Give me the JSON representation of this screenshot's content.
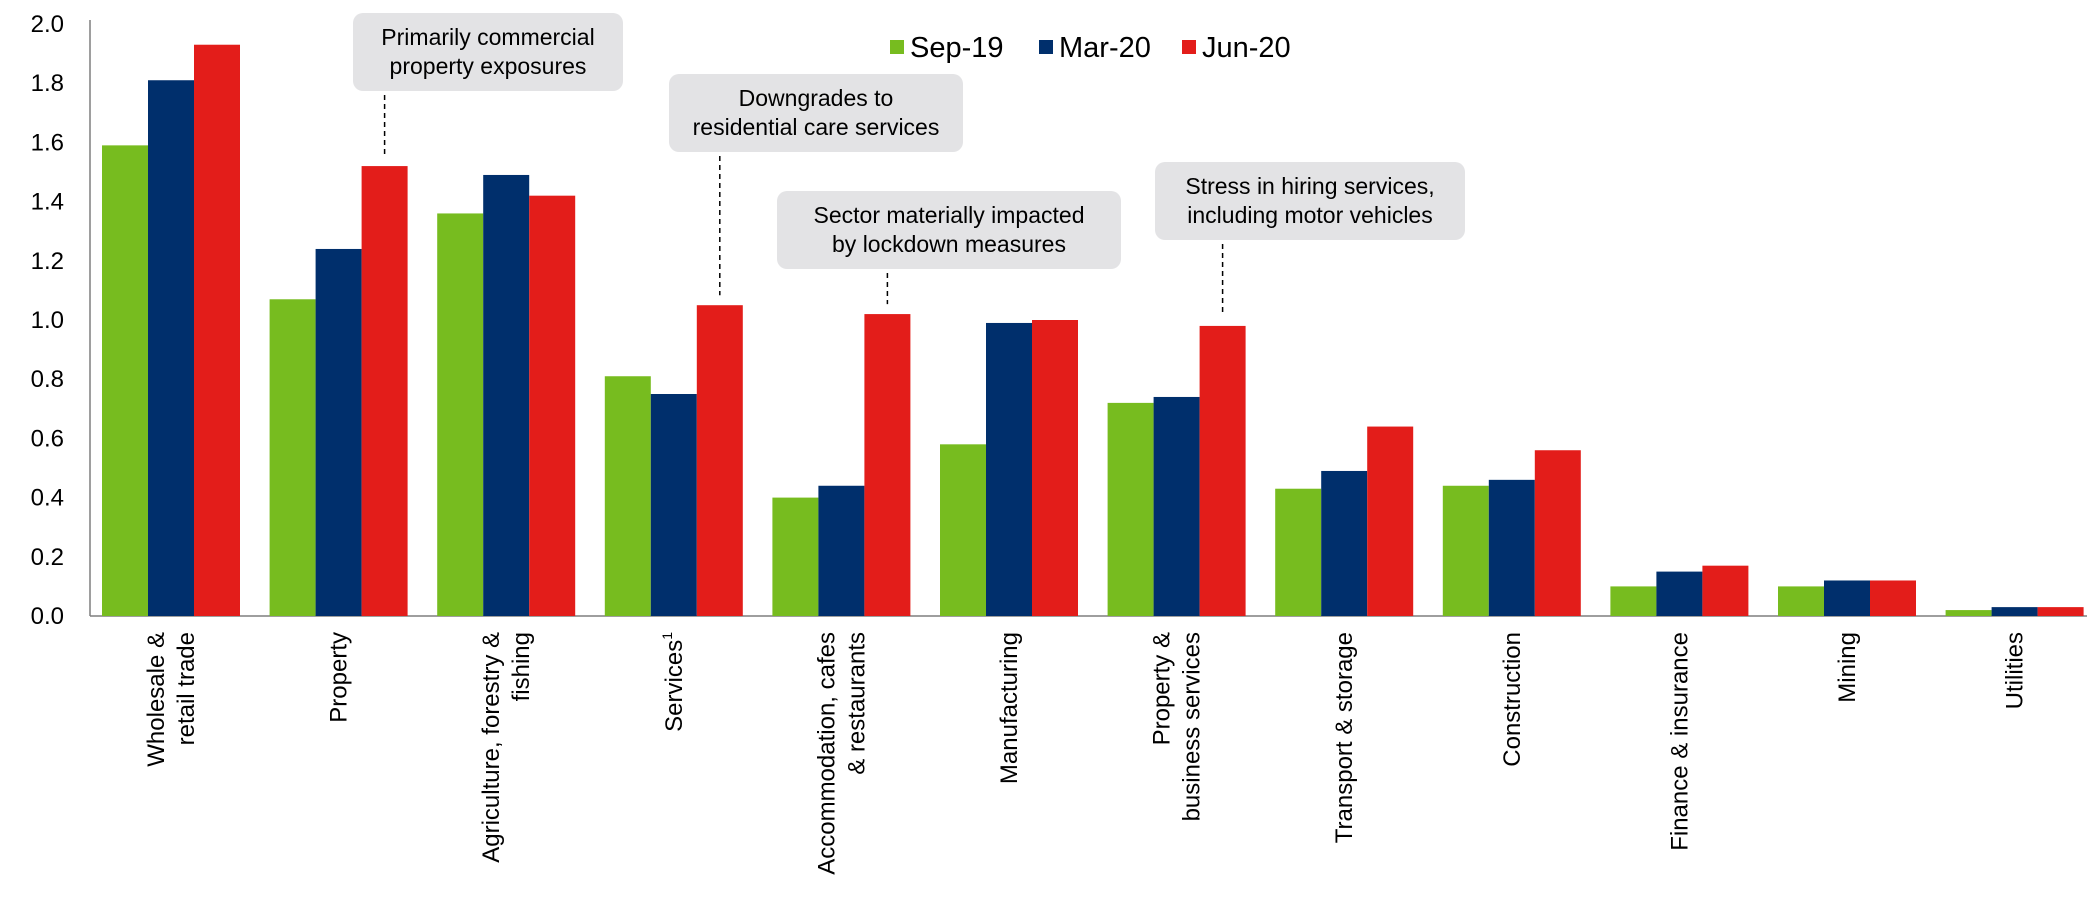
{
  "chart_data": {
    "type": "bar",
    "categories": [
      [
        "Wholesale &",
        "retail trade"
      ],
      [
        "Property"
      ],
      [
        "Agriculture, forestry &",
        "fishing"
      ],
      [
        "Services"
      ],
      [
        "Accommodation, cafes",
        "& restaurants"
      ],
      [
        "Manufacturing"
      ],
      [
        "Property &",
        "business services"
      ],
      [
        "Transport & storage"
      ],
      [
        "Construction"
      ],
      [
        "Finance & insurance"
      ],
      [
        "Mining"
      ],
      [
        "Utilities"
      ]
    ],
    "footnote_marks": [
      "",
      "",
      "",
      "1",
      "",
      "",
      "",
      "",
      "",
      "",
      "",
      ""
    ],
    "series": [
      {
        "name": "Sep-19",
        "color": "#77BC1F",
        "values": [
          1.59,
          1.07,
          1.36,
          0.81,
          0.4,
          0.58,
          0.72,
          0.43,
          0.44,
          0.1,
          0.1,
          0.02
        ]
      },
      {
        "name": "Mar-20",
        "color": "#002F6C",
        "values": [
          1.81,
          1.24,
          1.49,
          0.75,
          0.44,
          0.99,
          0.74,
          0.49,
          0.46,
          0.15,
          0.12,
          0.03
        ]
      },
      {
        "name": "Jun-20",
        "color": "#E31D1A",
        "values": [
          1.93,
          1.52,
          1.42,
          1.05,
          1.02,
          1.0,
          0.98,
          0.64,
          0.56,
          0.17,
          0.12,
          0.03
        ]
      }
    ],
    "y_ticks": [
      "0.0",
      "0.2",
      "0.4",
      "0.6",
      "0.8",
      "1.0",
      "1.2",
      "1.4",
      "1.6",
      "1.8",
      "2.0"
    ],
    "ylim": [
      0,
      2.0
    ],
    "title": "",
    "xlabel": "",
    "ylabel": "",
    "grid": false,
    "legend_position": "top-center",
    "annotations": [
      {
        "lines": [
          "Primarily commercial",
          "property exposures"
        ],
        "category_index": 1
      },
      {
        "lines": [
          "Downgrades to",
          "residential care services"
        ],
        "category_index": 3
      },
      {
        "lines": [
          "Sector materially impacted",
          "by lockdown measures"
        ],
        "category_index": 4
      },
      {
        "lines": [
          "Stress in hiring services,",
          "including motor vehicles"
        ],
        "category_index": 6
      }
    ]
  }
}
